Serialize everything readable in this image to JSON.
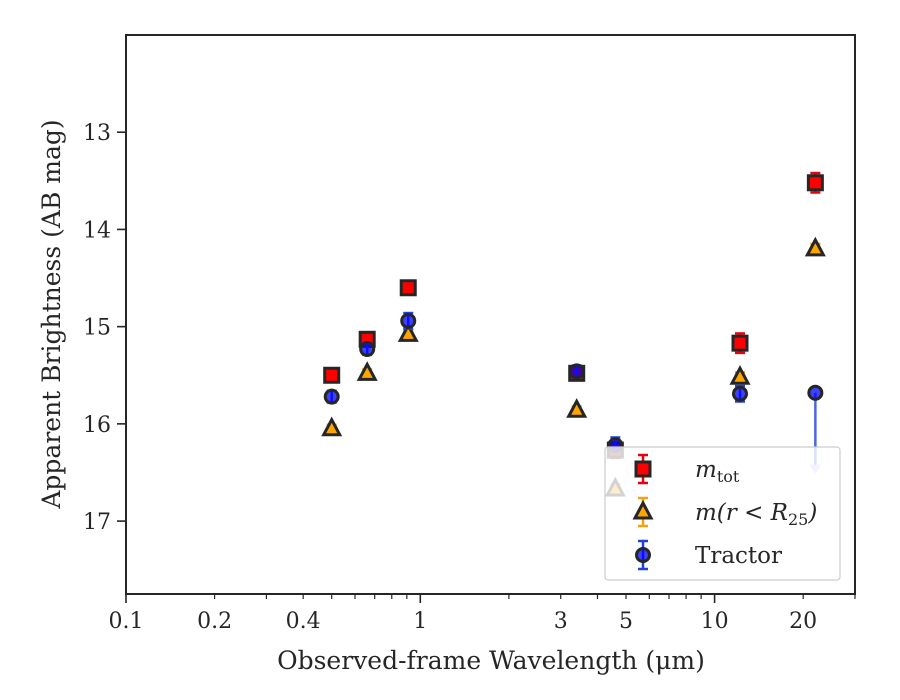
{
  "chart_data": {
    "type": "scatter",
    "title": "",
    "xlabel": "Observed-frame Wavelength (μm)",
    "ylabel": "Apparent Brightness (AB mag)",
    "xscale": "log",
    "xlim": [
      0.1,
      30
    ],
    "ylim": [
      17.75,
      12.0
    ],
    "y_inverted": true,
    "xticks": [
      {
        "value": 0.1,
        "label": "0.1"
      },
      {
        "value": 0.2,
        "label": "0.2"
      },
      {
        "value": 0.4,
        "label": "0.4"
      },
      {
        "value": 1,
        "label": "1"
      },
      {
        "value": 3,
        "label": "3"
      },
      {
        "value": 5,
        "label": "5"
      },
      {
        "value": 10,
        "label": "10"
      },
      {
        "value": 20,
        "label": "20"
      }
    ],
    "yticks": [
      {
        "value": 13,
        "label": "13"
      },
      {
        "value": 14,
        "label": "14"
      },
      {
        "value": 15,
        "label": "15"
      },
      {
        "value": 16,
        "label": "16"
      },
      {
        "value": 17,
        "label": "17"
      }
    ],
    "grid": false,
    "legend_position": "lower-right",
    "series": [
      {
        "name": "m_tot",
        "legend_label_main": "m",
        "legend_label_sub": "tot",
        "marker": "square",
        "face_color": "#ff0000",
        "edge_color": "#262626",
        "error_color": "#e8000b",
        "points": [
          {
            "x": 0.5,
            "y": 15.5,
            "err": 0.06
          },
          {
            "x": 0.66,
            "y": 15.13,
            "err": 0.06
          },
          {
            "x": 0.91,
            "y": 14.6,
            "err": 0.07
          },
          {
            "x": 3.4,
            "y": 15.48,
            "err": 0.06
          },
          {
            "x": 4.6,
            "y": 16.27,
            "err": 0.08
          },
          {
            "x": 12.2,
            "y": 15.17,
            "err": 0.1
          },
          {
            "x": 22.0,
            "y": 13.52,
            "err": 0.1
          }
        ]
      },
      {
        "name": "m(r < R_25)",
        "legend_label_main": "m(r < R",
        "legend_label_sub": "25",
        "legend_label_tail": ")",
        "marker": "triangle",
        "face_color": "#ffa500",
        "edge_color": "#262626",
        "error_color": "#f0a30a",
        "points": [
          {
            "x": 0.5,
            "y": 16.05,
            "err": 0.04
          },
          {
            "x": 0.66,
            "y": 15.48,
            "err": 0.04
          },
          {
            "x": 0.91,
            "y": 15.08,
            "err": 0.04
          },
          {
            "x": 3.4,
            "y": 15.86,
            "err": 0.04
          },
          {
            "x": 4.6,
            "y": 16.67,
            "err": 0.05
          },
          {
            "x": 12.2,
            "y": 15.52,
            "err": 0.05
          },
          {
            "x": 22.0,
            "y": 14.2,
            "err": 0.05
          }
        ]
      },
      {
        "name": "Tractor",
        "legend_label_main": "Tractor",
        "marker": "circle",
        "face_color": "#0000ff",
        "edge_color": "#262626",
        "error_color": "#2040e0",
        "points": [
          {
            "x": 0.5,
            "y": 15.72,
            "err": 0.06
          },
          {
            "x": 0.66,
            "y": 15.23,
            "err": 0.06
          },
          {
            "x": 0.91,
            "y": 14.94,
            "err": 0.08
          },
          {
            "x": 3.4,
            "y": 15.46,
            "err": 0.06
          },
          {
            "x": 4.6,
            "y": 16.22,
            "err": 0.08
          },
          {
            "x": 12.2,
            "y": 15.69,
            "err": 0.08
          },
          {
            "x": 22.0,
            "y": 15.68,
            "err": 0,
            "upper_limit": true,
            "limit_to": 16.5
          }
        ]
      }
    ]
  }
}
